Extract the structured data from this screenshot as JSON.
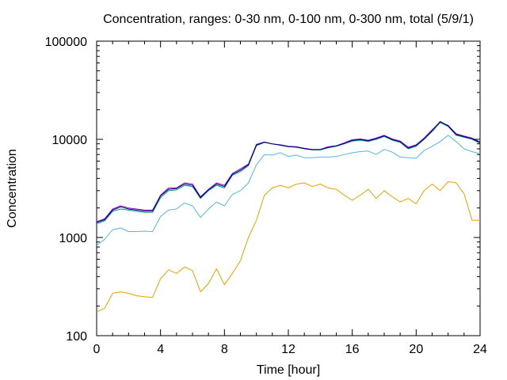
{
  "chart_data": {
    "type": "line",
    "title": "Concentration, ranges: 0-30 nm, 0-100 nm, 0-300 nm, total (5/9/1)",
    "xlabel": "Time [hour]",
    "ylabel": "Concentration",
    "xlim": [
      0,
      24
    ],
    "ylim": [
      100,
      100000
    ],
    "yscale": "log",
    "grid": false,
    "legend": "none",
    "x_ticks": [
      "0",
      "4",
      "8",
      "12",
      "16",
      "20",
      "24"
    ],
    "y_ticks": [
      "100",
      "1000",
      "10000",
      "100000"
    ],
    "x": [
      0,
      0.5,
      1,
      1.5,
      2,
      2.5,
      3,
      3.5,
      4,
      4.5,
      5,
      5.5,
      6,
      6.5,
      7,
      7.5,
      8,
      8.5,
      9,
      9.5,
      10,
      10.5,
      11,
      11.5,
      12,
      12.5,
      13,
      13.5,
      14,
      14.5,
      15,
      15.5,
      16,
      16.5,
      17,
      17.5,
      18,
      18.5,
      19,
      19.5,
      20,
      20.5,
      21,
      21.5,
      22,
      22.5,
      23,
      23.5,
      24
    ],
    "series": [
      {
        "color": "#e8a000",
        "values": [
          175,
          190,
          270,
          280,
          270,
          255,
          250,
          245,
          380,
          470,
          430,
          500,
          460,
          280,
          340,
          480,
          330,
          430,
          580,
          1000,
          1500,
          2700,
          3200,
          3400,
          3200,
          3500,
          3600,
          3300,
          3500,
          3200,
          3100,
          2700,
          2400,
          2700,
          3100,
          2500,
          3000,
          2600,
          2300,
          2500,
          2200,
          3000,
          3500,
          3000,
          3700,
          3600,
          2800,
          1500,
          1500
        ]
      },
      {
        "color": "#55b4e9",
        "values": [
          830,
          960,
          1200,
          1250,
          1150,
          1150,
          1160,
          1150,
          1640,
          1900,
          1950,
          2250,
          2100,
          1600,
          1950,
          2300,
          2100,
          2750,
          3000,
          3600,
          5500,
          7000,
          6900,
          7300,
          6700,
          6900,
          6500,
          6500,
          6600,
          6600,
          6700,
          7000,
          7300,
          7500,
          7600,
          7000,
          7900,
          7400,
          6600,
          6500,
          6400,
          7700,
          8500,
          9500,
          11000,
          9500,
          8000,
          7500,
          7100
        ]
      },
      {
        "color": "#009e73",
        "values": [
          1380,
          1480,
          1850,
          1950,
          1900,
          1850,
          1800,
          1800,
          2550,
          3000,
          3050,
          3400,
          3300,
          2500,
          3000,
          3400,
          3200,
          4300,
          4700,
          5400,
          8600,
          9300,
          9000,
          8700,
          8400,
          8300,
          8000,
          7800,
          7800,
          8200,
          8500,
          9000,
          9600,
          9800,
          9500,
          10000,
          10700,
          9800,
          9300,
          8000,
          8500,
          10000,
          12000,
          14800,
          13500,
          11000,
          10500,
          10000,
          9100
        ]
      },
      {
        "color": "#9400d3",
        "values": [
          1450,
          1550,
          1950,
          2100,
          2000,
          1950,
          1900,
          1900,
          2700,
          3200,
          3200,
          3600,
          3500,
          2600,
          3100,
          3600,
          3400,
          4500,
          5000,
          5600,
          8900,
          9400,
          9000,
          8800,
          8500,
          8400,
          8100,
          7900,
          7900,
          8400,
          8600,
          9200,
          9900,
          10100,
          9800,
          10300,
          11000,
          10100,
          9600,
          8300,
          8800,
          10300,
          12500,
          15000,
          13900,
          11400,
          10800,
          10300,
          9400
        ]
      },
      {
        "color": "#000080",
        "values": [
          1420,
          1520,
          1900,
          2050,
          1950,
          1900,
          1860,
          1860,
          2650,
          3100,
          3150,
          3500,
          3400,
          2550,
          3050,
          3500,
          3300,
          4400,
          4850,
          5500,
          8750,
          9350,
          9000,
          8750,
          8450,
          8350,
          8050,
          7850,
          7850,
          8300,
          8550,
          9100,
          9750,
          9950,
          9650,
          10150,
          10850,
          9950,
          9450,
          8150,
          8650,
          10150,
          12250,
          15200,
          13700,
          11200,
          10650,
          10150,
          9250
        ]
      }
    ]
  }
}
